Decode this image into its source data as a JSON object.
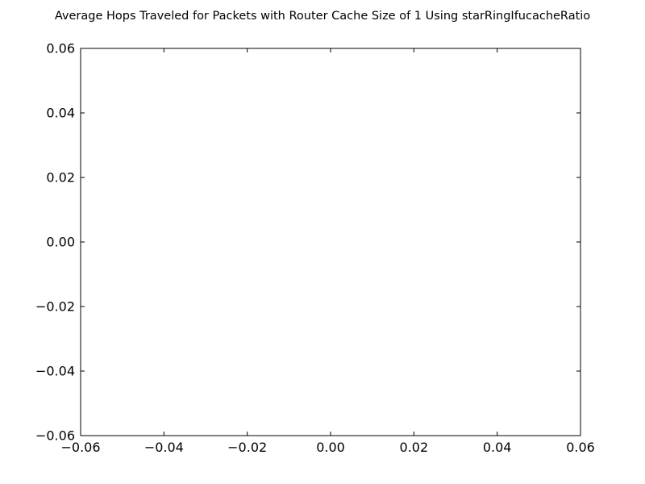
{
  "chart_data": {
    "type": "line",
    "title": "Average Hops Traveled for Packets with Router Cache Size of 1 Using starRingIfucacheRatio",
    "xlabel": "",
    "ylabel": "",
    "xlim": [
      -0.06,
      0.06
    ],
    "ylim": [
      -0.06,
      0.06
    ],
    "xticks": [
      -0.06,
      -0.04,
      -0.02,
      0.0,
      0.02,
      0.04,
      0.06
    ],
    "xtick_labels": [
      "−0.06",
      "−0.04",
      "−0.02",
      "0.00",
      "0.02",
      "0.04",
      "0.06"
    ],
    "yticks": [
      -0.06,
      -0.04,
      -0.02,
      0.0,
      0.02,
      0.04,
      0.06
    ],
    "ytick_labels": [
      "−0.06",
      "−0.04",
      "−0.02",
      "0.00",
      "0.02",
      "0.04",
      "0.06"
    ],
    "grid": false,
    "series": []
  }
}
